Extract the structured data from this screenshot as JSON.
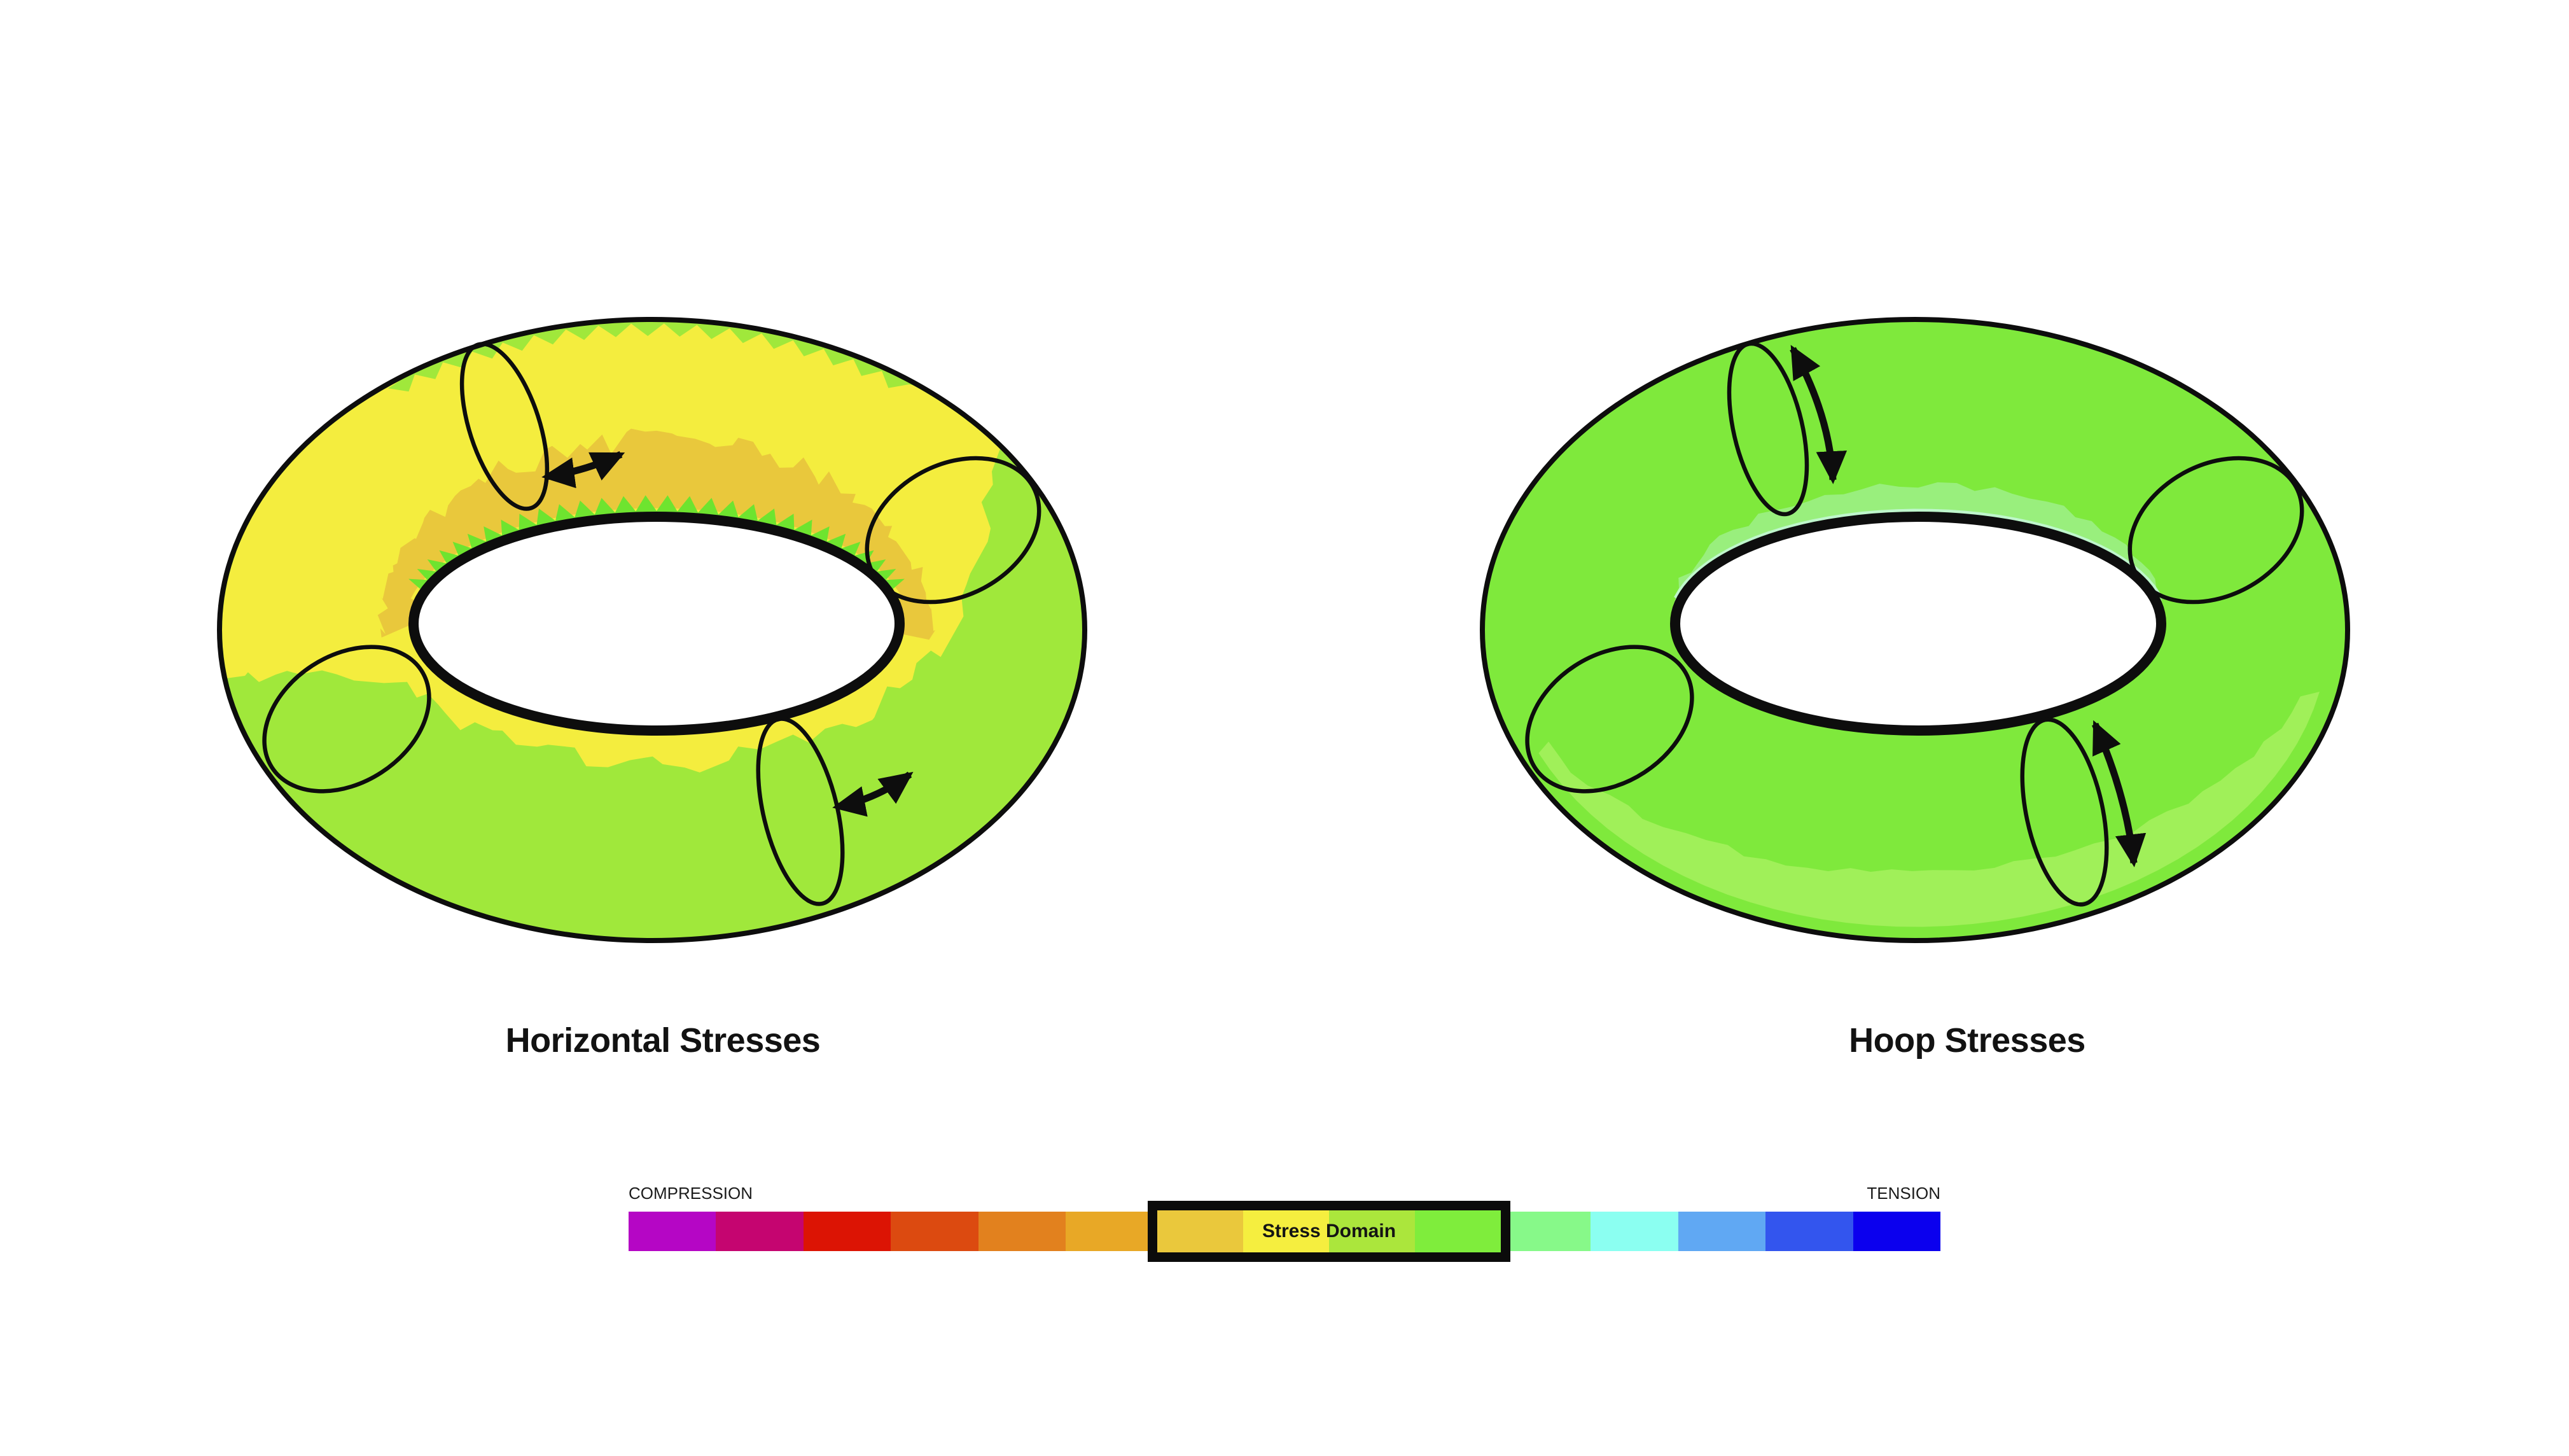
{
  "figure": {
    "left_torus": {
      "title": "Horizontal Stresses",
      "colors": {
        "top": "#F4ED3E",
        "inner_collar": "#E9C83C",
        "bottom": "#A0E83B",
        "fringe": "#6EE42F"
      }
    },
    "right_torus": {
      "title": "Hoop Stresses",
      "colors": {
        "body": "#7FE93C",
        "bottom_highlight": "#A0F059",
        "rim_band": "#99EF7D",
        "rim_line": "#BFF6CC"
      }
    },
    "outline_color": "#0D0D0D"
  },
  "legend": {
    "compression_label": "COMPRESSION",
    "tension_label": "TENSION",
    "stress_domain": {
      "label": "Stress Domain"
    },
    "segments": [
      {
        "color": "#B506C5",
        "in_domain": false
      },
      {
        "color": "#C50570",
        "in_domain": false
      },
      {
        "color": "#DC1404",
        "in_domain": false
      },
      {
        "color": "#DC4A10",
        "in_domain": false
      },
      {
        "color": "#E2811E",
        "in_domain": false
      },
      {
        "color": "#E8A826",
        "in_domain": false
      },
      {
        "color": "#EAC83C",
        "in_domain": true
      },
      {
        "color": "#F5EE3F",
        "in_domain": true
      },
      {
        "color": "#ABE63C",
        "in_domain": true
      },
      {
        "color": "#7FED3C",
        "in_domain": true
      },
      {
        "color": "#87F989",
        "in_domain": false
      },
      {
        "color": "#8BFFF1",
        "in_domain": false
      },
      {
        "color": "#60A8F3",
        "in_domain": false
      },
      {
        "color": "#3355EE",
        "in_domain": false
      },
      {
        "color": "#0B00EE",
        "in_domain": false
      }
    ]
  }
}
